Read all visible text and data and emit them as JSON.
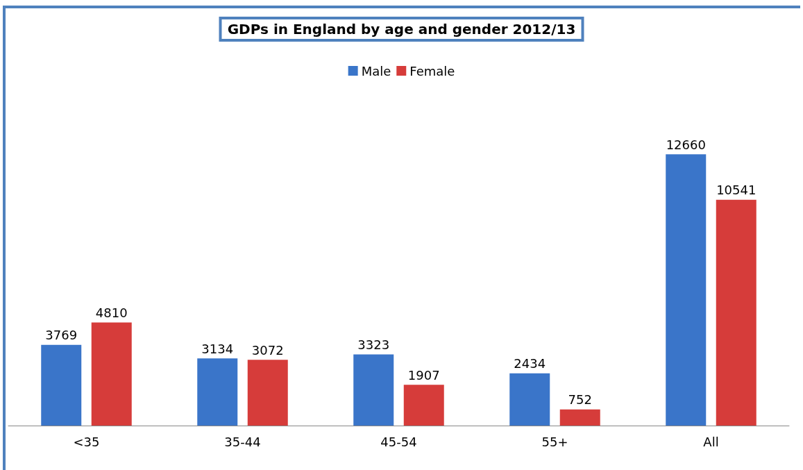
{
  "chart_data": {
    "type": "bar",
    "title": "GDPs in England by age and gender 2012/13",
    "categories": [
      "<35",
      "35-44",
      "45-54",
      "55+",
      "All"
    ],
    "series": [
      {
        "name": "Male",
        "color": "#3a75c9",
        "values": [
          3769,
          3134,
          3323,
          2434,
          12660
        ]
      },
      {
        "name": "Female",
        "color": "#d63c3a",
        "values": [
          4810,
          3072,
          1907,
          752,
          10541
        ]
      }
    ],
    "data_labels": true,
    "legend": "top",
    "grid": false
  }
}
